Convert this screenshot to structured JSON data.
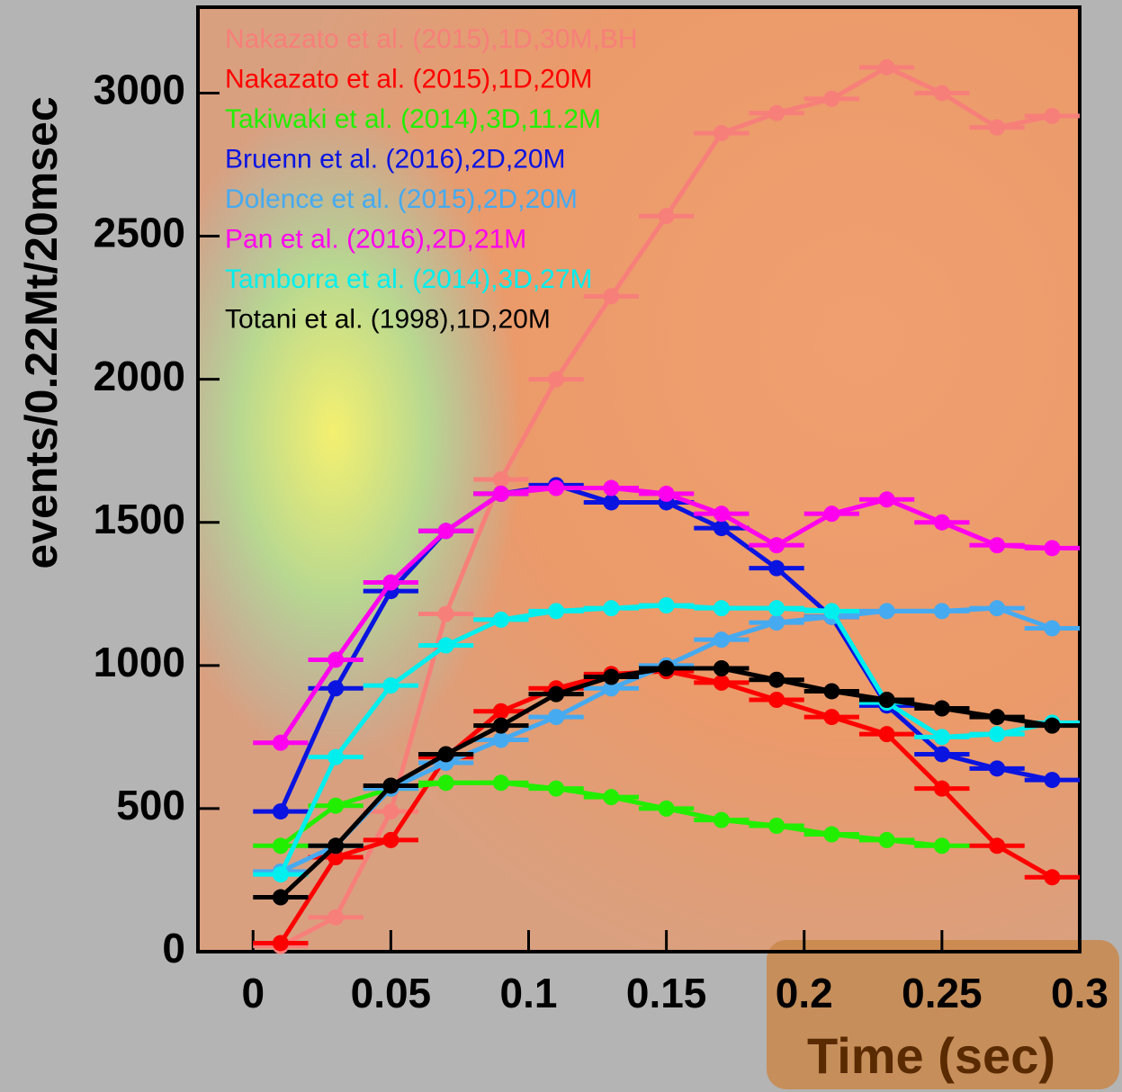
{
  "chart_data": {
    "type": "line",
    "xlabel": "Time (sec)",
    "ylabel": "events/0.22Mt/20msec",
    "x": [
      0.01,
      0.03,
      0.05,
      0.07,
      0.09,
      0.11,
      0.13,
      0.15,
      0.17,
      0.19,
      0.21,
      0.23,
      0.25,
      0.27,
      0.29
    ],
    "xerr": 0.01,
    "xlim": [
      -0.02,
      0.3
    ],
    "xticks": [
      0,
      0.05,
      0.1,
      0.15,
      0.2,
      0.25,
      0.3
    ],
    "ylim": [
      0,
      3300
    ],
    "yticks": [
      0,
      500,
      1000,
      1500,
      2000,
      2500,
      3000
    ],
    "series": [
      {
        "name": "Nakazato et al. (2015),1D,30M,BH",
        "color": "#f77f7a",
        "values": [
          20,
          120,
          490,
          1180,
          1650,
          2000,
          2290,
          2570,
          2860,
          2930,
          2980,
          3090,
          3000,
          2880,
          2920
        ]
      },
      {
        "name": "Nakazato et al. (2015),1D,20M",
        "color": "#ff0000",
        "values": [
          30,
          330,
          390,
          680,
          840,
          920,
          970,
          980,
          940,
          880,
          820,
          760,
          570,
          370,
          260
        ]
      },
      {
        "name": "Takiwaki et al. (2014),3D,11.2M",
        "color": "#22ee00",
        "values": [
          370,
          510,
          570,
          590,
          590,
          570,
          540,
          500,
          460,
          440,
          410,
          390,
          370,
          null,
          null
        ]
      },
      {
        "name": "Bruenn et al. (2016),2D,20M",
        "color": "#0a14e0",
        "values": [
          490,
          920,
          1260,
          1470,
          1600,
          1630,
          1570,
          1570,
          1480,
          1340,
          1170,
          860,
          690,
          640,
          600
        ]
      },
      {
        "name": "Dolence et al. (2015),2D,20M",
        "color": "#46aaf0",
        "values": [
          280,
          370,
          570,
          660,
          740,
          820,
          920,
          1000,
          1090,
          1150,
          1170,
          1190,
          1190,
          1200,
          1130
        ]
      },
      {
        "name": "Pan et al. (2016),2D,21M",
        "color": "#ff00ee",
        "values": [
          730,
          1020,
          1290,
          1470,
          1600,
          1620,
          1620,
          1600,
          1530,
          1420,
          1530,
          1580,
          1500,
          1420,
          1410
        ]
      },
      {
        "name": "Tamborra et al. (2014),3D,27M",
        "color": "#00eeee",
        "values": [
          270,
          680,
          930,
          1070,
          1160,
          1190,
          1200,
          1210,
          1200,
          1200,
          1190,
          870,
          750,
          760,
          800
        ]
      },
      {
        "name": "Totani et al. (1998),1D,20M",
        "color": "#000000",
        "values": [
          190,
          370,
          580,
          690,
          790,
          900,
          960,
          990,
          990,
          950,
          910,
          880,
          850,
          820,
          790
        ]
      }
    ]
  }
}
